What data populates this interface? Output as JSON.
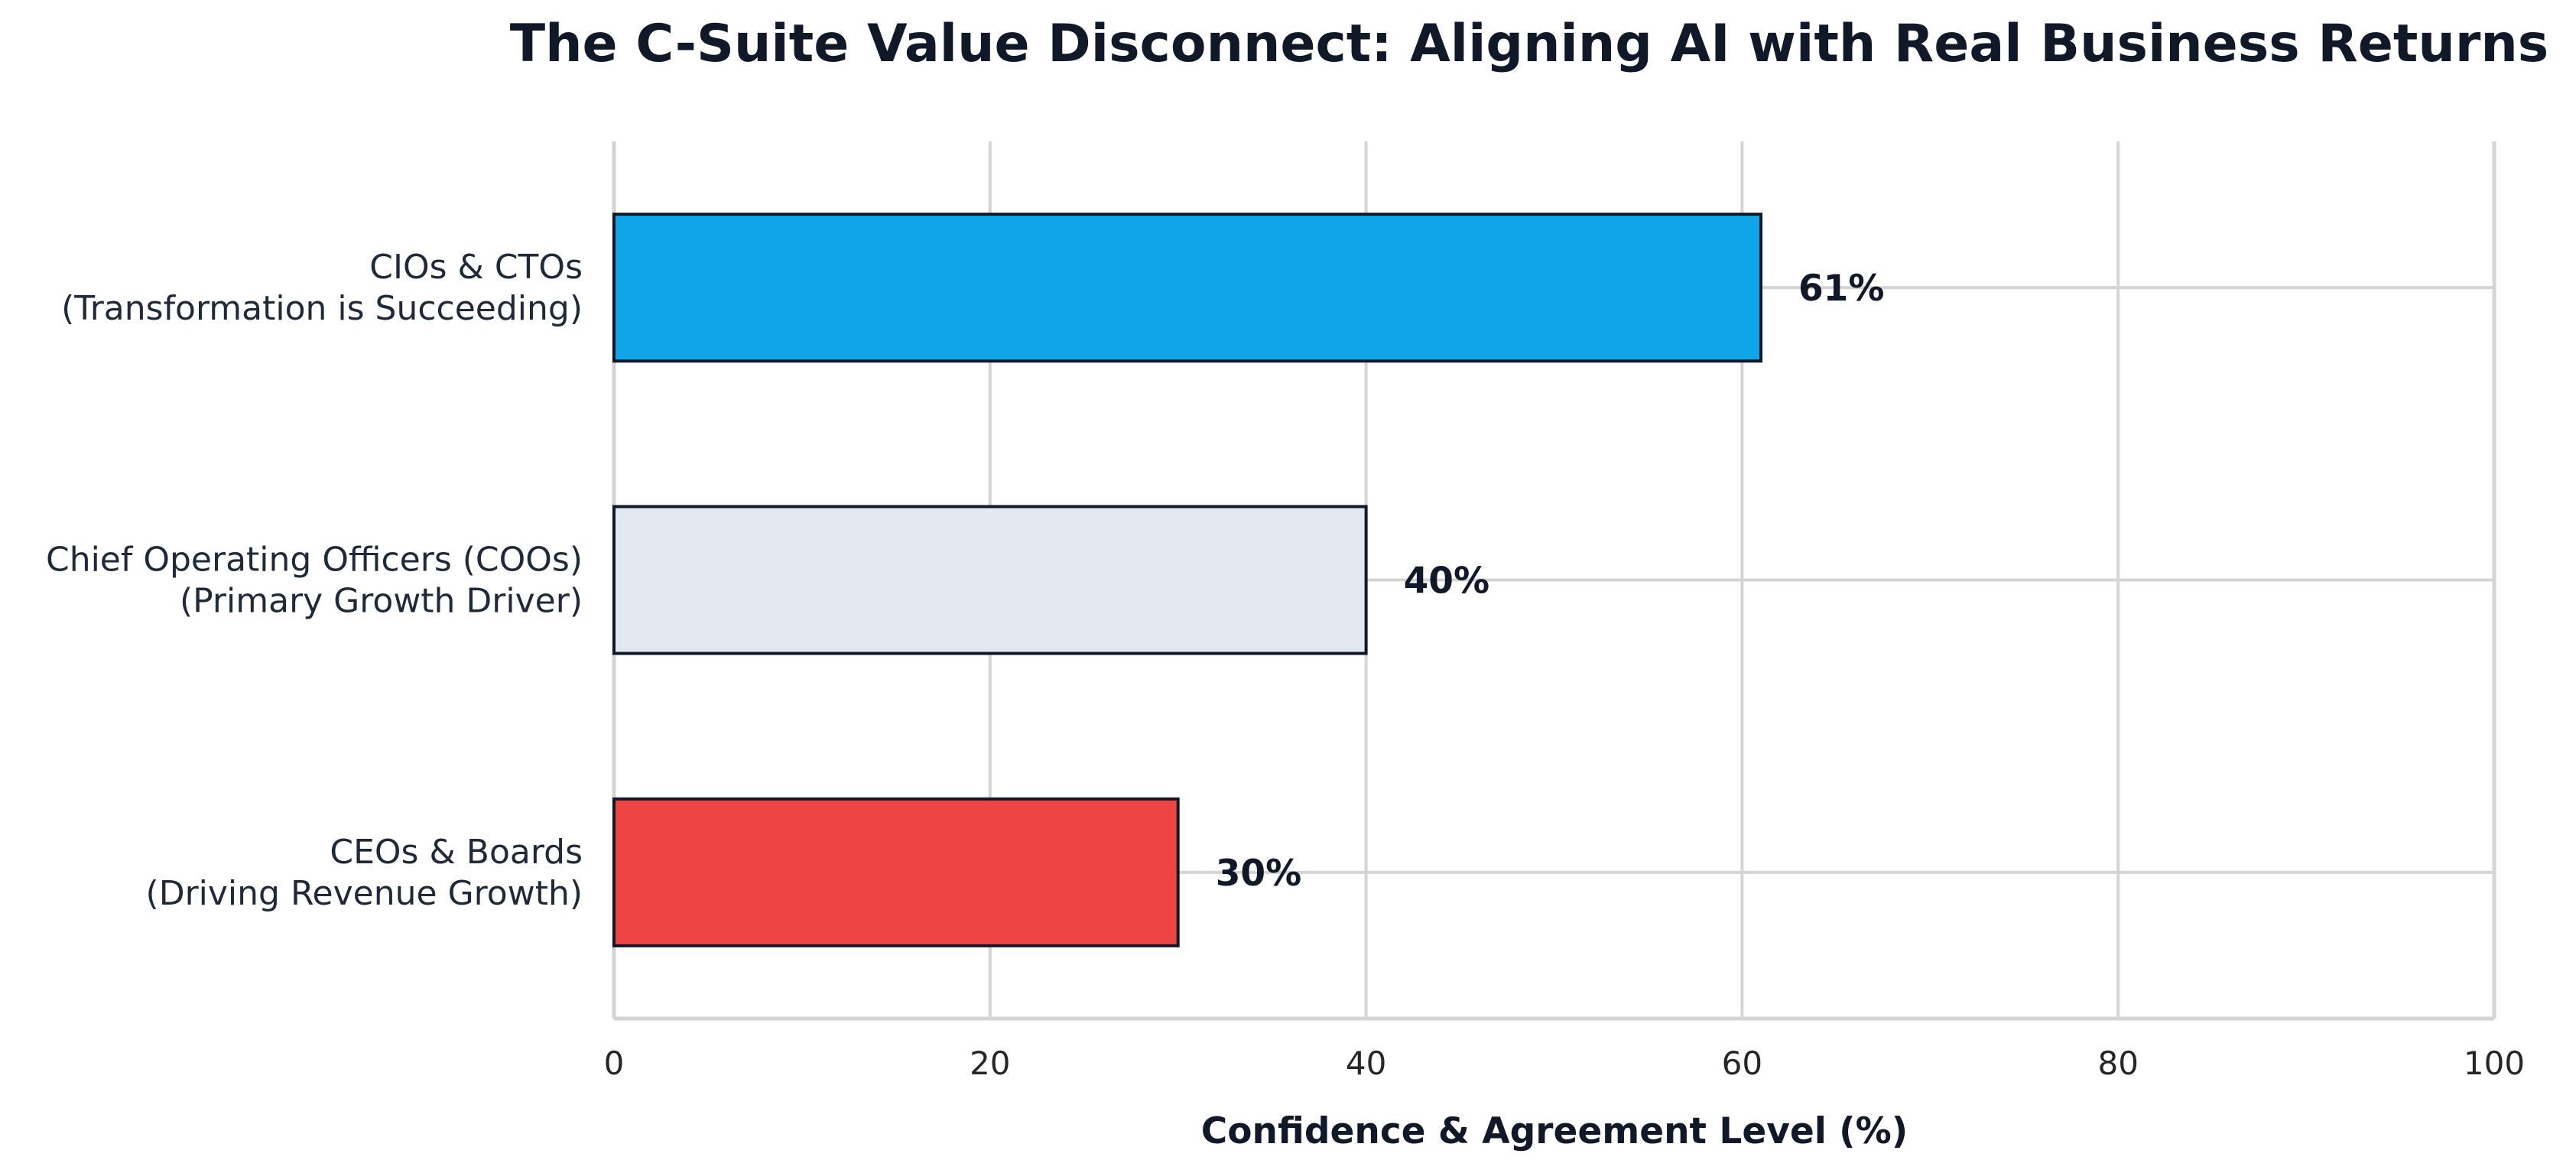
{
  "chart_data": {
    "type": "bar",
    "orientation": "horizontal",
    "title": "The C-Suite Value Disconnect: Aligning AI with Real Business Returns",
    "xlabel": "Confidence & Agreement Level (%)",
    "ylabel": "",
    "xlim": [
      0,
      100
    ],
    "xticks": [
      "0",
      "20",
      "40",
      "60",
      "80",
      "100"
    ],
    "grid": true,
    "categories": [
      {
        "lines": [
          "CIOs & CTOs",
          "(Transformation is Succeeding)"
        ],
        "value": 61,
        "label": "61%",
        "color": "#10a5e8"
      },
      {
        "lines": [
          "Chief Operating Officers (COOs)",
          "(Primary Growth Driver)"
        ],
        "value": 40,
        "label": "40%",
        "color": "#e2e8f0"
      },
      {
        "lines": [
          "CEOs & Boards",
          "(Driving Revenue Growth)"
        ],
        "value": 30,
        "label": "30%",
        "color": "#ef4444"
      }
    ],
    "bar_edge_color": "#111827",
    "grid_color": "#d4d4d4"
  }
}
